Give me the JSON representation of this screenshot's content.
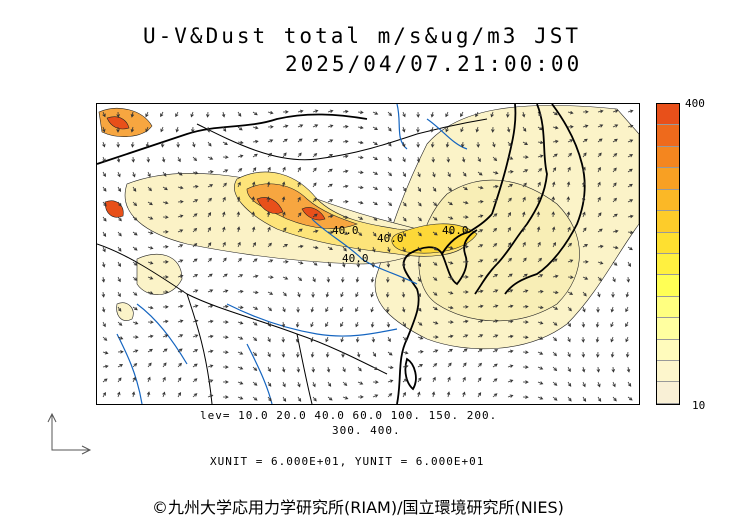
{
  "title": {
    "line1": "U-V&Dust total m/s&ug/m3 JST",
    "line2": "2025/04/07.21:00:00"
  },
  "colorbar": {
    "max_label": "400",
    "min_label": "10",
    "colors": [
      "#e8501a",
      "#ee6a1c",
      "#f4861f",
      "#f8a023",
      "#fbb826",
      "#fdcc2a",
      "#fee030",
      "#fff040",
      "#ffff55",
      "#ffff80",
      "#ffffa0",
      "#fffbbc",
      "#fdf6cc",
      "#f9f0d6"
    ]
  },
  "levels": {
    "line1": "lev= 10.0 20.0 40.0 60.0 100. 150. 200.",
    "line2": "300. 400."
  },
  "units": "XUNIT = 6.000E+01, YUNIT = 6.000E+01",
  "copyright": "©九州大学応用力学研究所(RIAM)/国立環境研究所(NIES)",
  "contour_labels": [
    "40.0",
    "40.0",
    "40.0",
    "40.0"
  ],
  "map": {
    "land_color": "#fcf6d8",
    "coast_color": "#000000",
    "river_color": "#1565c0",
    "arrow_color": "#333333"
  }
}
